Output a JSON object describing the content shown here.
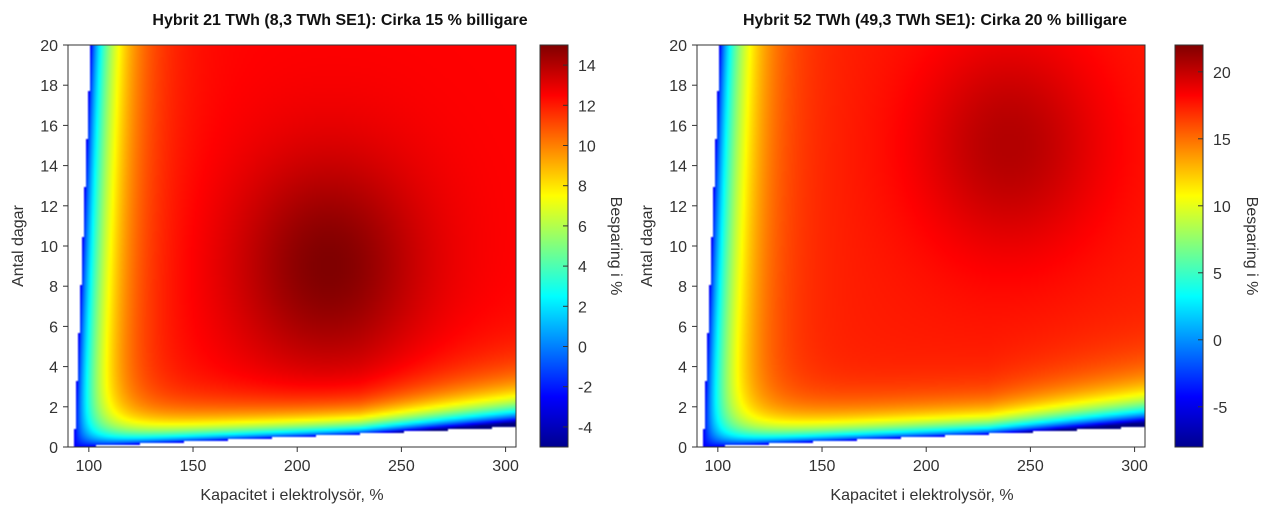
{
  "chart_data": [
    {
      "type": "heatmap",
      "title": "Hybrit 21 TWh (8,3 TWh SE1): Cirka 15 % billigare",
      "xlabel": "Kapacitet i elektrolysör, %",
      "ylabel": "Antal dagar",
      "colorbar_label": "Besparing i %",
      "xlim": [
        90,
        305
      ],
      "ylim": [
        0,
        20
      ],
      "xticks": [
        100,
        150,
        200,
        250,
        300
      ],
      "yticks": [
        0,
        2,
        4,
        6,
        8,
        10,
        12,
        14,
        16,
        18,
        20
      ],
      "color_range": [
        -5,
        15
      ],
      "colorbar_ticks": [
        -4,
        -2,
        0,
        2,
        4,
        6,
        8,
        10,
        12,
        14
      ],
      "colorbar_tick_labels": [
        "-4",
        "-2",
        "0",
        "2",
        "4",
        "6",
        "8",
        "10",
        "12",
        "14"
      ],
      "grid": false,
      "colormap": "jet",
      "peak": {
        "x": 215,
        "y": 9,
        "value": 15
      },
      "plateau_value": 12.5,
      "defined_region": {
        "left_edge": [
          [
            93,
            0
          ],
          [
            101,
            20
          ]
        ],
        "bottom_edge": [
          [
            93,
            0
          ],
          [
            305,
            1
          ]
        ]
      }
    },
    {
      "type": "heatmap",
      "title": "Hybrit 52 TWh (49,3 TWh SE1): Cirka 20 % billigare",
      "xlabel": "Kapacitet i elektrolysör, %",
      "ylabel": "Antal dagar",
      "colorbar_label": "Besparing i %",
      "xlim": [
        90,
        305
      ],
      "ylim": [
        0,
        20
      ],
      "xticks": [
        100,
        150,
        200,
        250,
        300
      ],
      "yticks": [
        0,
        2,
        4,
        6,
        8,
        10,
        12,
        14,
        16,
        18,
        20
      ],
      "color_range": [
        -8,
        22
      ],
      "colorbar_ticks": [
        -5,
        0,
        5,
        10,
        15,
        20
      ],
      "colorbar_tick_labels": [
        "-5",
        "0",
        "5",
        "10",
        "15",
        "20"
      ],
      "grid": false,
      "colormap": "jet",
      "peak": {
        "x": 240,
        "y": 15,
        "value": 20.5
      },
      "plateau_value": 17.5,
      "defined_region": {
        "left_edge": [
          [
            93,
            0
          ],
          [
            101,
            20
          ]
        ],
        "bottom_edge": [
          [
            93,
            0
          ],
          [
            305,
            1
          ]
        ]
      }
    }
  ]
}
